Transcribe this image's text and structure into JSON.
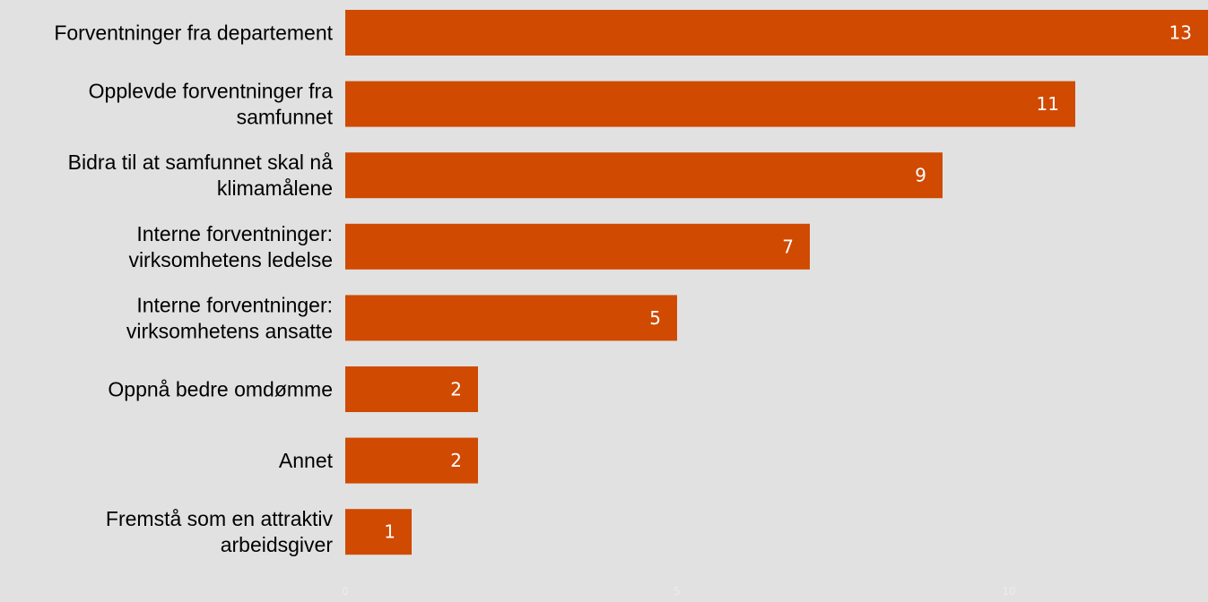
{
  "chart_data": {
    "type": "bar",
    "orientation": "horizontal",
    "categories": [
      [
        "Forventninger fra departement"
      ],
      [
        "Opplevde forventninger fra",
        "samfunnet"
      ],
      [
        "Bidra til at samfunnet skal nå",
        "klimamålene"
      ],
      [
        "Interne forventninger:",
        "virksomhetens ledelse"
      ],
      [
        "Interne forventninger:",
        "virksomhetens ansatte"
      ],
      [
        "Oppnå bedre omdømme"
      ],
      [
        "Annet"
      ],
      [
        "Fremstå som en attraktiv",
        "arbeidsgiver"
      ]
    ],
    "values": [
      13,
      11,
      9,
      7,
      5,
      2,
      2,
      1
    ],
    "xticks": [
      0,
      5,
      10
    ],
    "xlim": [
      0,
      13
    ],
    "title": "",
    "xlabel": "",
    "ylabel": "",
    "grid": false,
    "legend": "none",
    "colors": {
      "bar": "#d04a02",
      "background": "#e1e1e1",
      "category_text": "#000000",
      "value_text": "#ffffff",
      "tick_text": "#ececec"
    }
  }
}
